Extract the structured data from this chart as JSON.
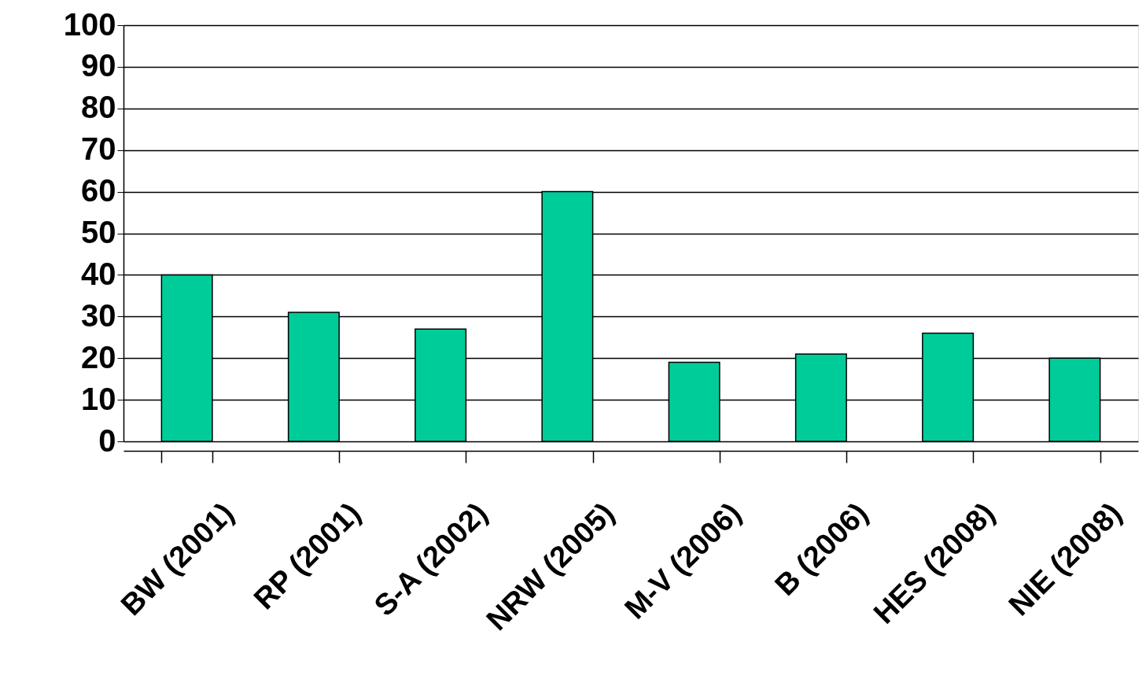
{
  "chart_data": {
    "type": "bar",
    "categories": [
      "BW (2001)",
      "RP (2001)",
      "S-A (2002)",
      "NRW (2005)",
      "M-V (2006)",
      "B (2006)",
      "HES (2008)",
      "NIE (2008)"
    ],
    "values": [
      40,
      31,
      27,
      60,
      19,
      21,
      26,
      20
    ],
    "color": "#00cc99",
    "ylim": [
      0,
      100
    ],
    "yticks": [
      0,
      10,
      20,
      30,
      40,
      50,
      60,
      70,
      80,
      90,
      100
    ],
    "grid": "y"
  }
}
